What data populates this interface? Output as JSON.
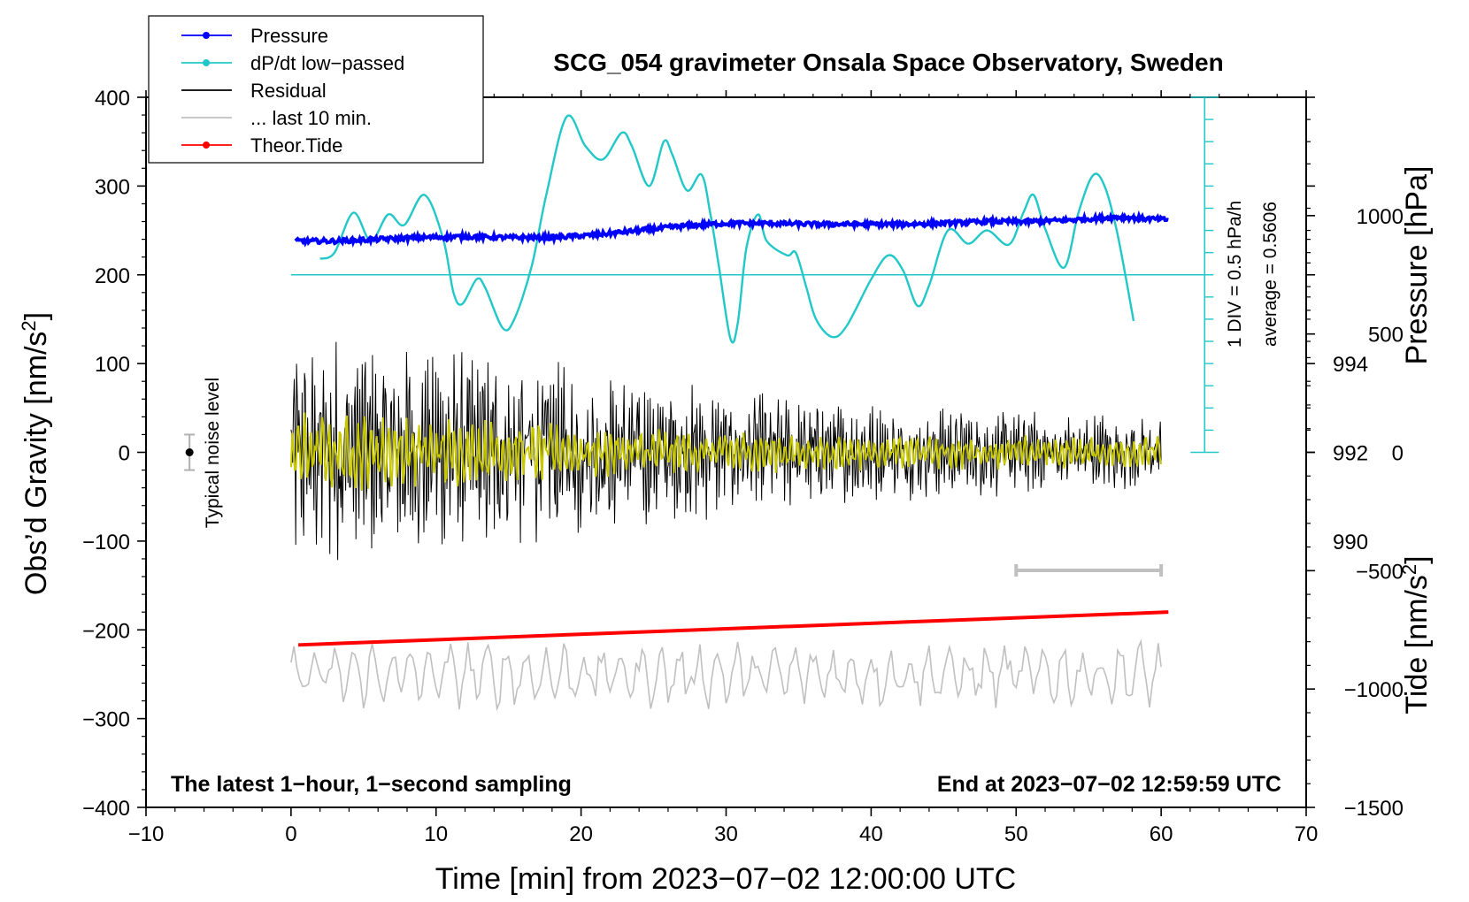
{
  "chart_data": {
    "type": "line",
    "title": "SCG_054 gravimeter Onsala Space Observatory, Sweden",
    "xlabel": "Time [min] from 2023−07−02 12:00:00 UTC",
    "ylabel_prefix": "Obs’d Gravity [nm/s",
    "ylabel_suffix": "]",
    "ylabel_right_top": "Pressure [hPa]",
    "ylabel_right_bottom_prefix": "Tide [nm/s",
    "ylabel_right_bottom_suffix": "]",
    "superscript": "2",
    "xlim": [
      -10,
      70
    ],
    "ylim": [
      -400,
      400
    ],
    "x_ticks": [
      "−10",
      "0",
      "10",
      "20",
      "30",
      "40",
      "50",
      "60",
      "70"
    ],
    "x_tick_values": [
      -10,
      0,
      10,
      20,
      30,
      40,
      50,
      60,
      70
    ],
    "y_ticks": [
      "400",
      "300",
      "200",
      "100",
      "0",
      "−100",
      "−200",
      "−300",
      "−400"
    ],
    "y_tick_values": [
      400,
      300,
      200,
      100,
      0,
      -100,
      -200,
      -300,
      -400
    ],
    "pressure_ticks": [
      "994",
      "992",
      "990"
    ],
    "pressure_tick_values": [
      994,
      992,
      990
    ],
    "pressure_axis_ylim": [
      984,
      1000
    ],
    "tide_ticks": [
      "1000",
      "500",
      "0",
      "−500",
      "−1000",
      "−1500"
    ],
    "tide_tick_values": [
      1000,
      500,
      0,
      -500,
      -1000,
      -1500
    ],
    "tide_axis_ylim": [
      -1500,
      1500
    ],
    "legend": [
      {
        "label": "Pressure",
        "color": "#0000ff",
        "marker": true
      },
      {
        "label": "dP/dt low−passed",
        "color": "#22c8c8",
        "marker": true
      },
      {
        "label": "Residual",
        "color": "#000000",
        "marker": false
      },
      {
        "label": "... last 10 min.",
        "color": "#c0c0c0",
        "marker": false
      },
      {
        "label": "Theor.Tide",
        "color": "#ff0000",
        "marker": true
      }
    ],
    "annotations": {
      "bottom_left": "The latest 1−hour, 1−second sampling",
      "bottom_right": "End at 2023−07−02 12:59:59 UTC",
      "noise_label": "Typical noise level",
      "div_label": "1 DIV = 0.5 hPa/h",
      "average_label": "average = 0.5606"
    },
    "noise_bar": {
      "x": -7,
      "y": 0,
      "half_range": 20
    },
    "dpdt_scale_bar": {
      "x": 63,
      "divisions": 16,
      "per_div_hpa_h": 0.5
    },
    "dpdt_baseline_y": 200,
    "last10_bar": {
      "x_start": 50,
      "x_end": 60,
      "y": -133
    },
    "series": [
      {
        "name": "Pressure",
        "color": "#0000ff",
        "points": [
          [
            0.3,
            238
          ],
          [
            3,
            238
          ],
          [
            6,
            240
          ],
          [
            9,
            242
          ],
          [
            12,
            243
          ],
          [
            15,
            242
          ],
          [
            18,
            242
          ],
          [
            21,
            245
          ],
          [
            24,
            250
          ],
          [
            27,
            255
          ],
          [
            30,
            258
          ],
          [
            33,
            258
          ],
          [
            36,
            257
          ],
          [
            39,
            257
          ],
          [
            42,
            257
          ],
          [
            45,
            258
          ],
          [
            48,
            260
          ],
          [
            51,
            260
          ],
          [
            54,
            262
          ],
          [
            57,
            265
          ],
          [
            60.5,
            262
          ]
        ]
      },
      {
        "name": "dP/dt low−passed",
        "color": "#22c8c8",
        "points": [
          [
            2,
            218
          ],
          [
            3,
            225
          ],
          [
            4.3,
            270
          ],
          [
            5.5,
            238
          ],
          [
            6.7,
            268
          ],
          [
            7.8,
            256
          ],
          [
            9.2,
            290
          ],
          [
            10.5,
            240
          ],
          [
            11.2,
            180
          ],
          [
            11.8,
            167
          ],
          [
            12.8,
            195
          ],
          [
            13.4,
            185
          ],
          [
            14.6,
            140
          ],
          [
            15.4,
            150
          ],
          [
            16.6,
            210
          ],
          [
            17.6,
            290
          ],
          [
            19,
            378
          ],
          [
            20.3,
            345
          ],
          [
            21.5,
            330
          ],
          [
            22.8,
            360
          ],
          [
            23.5,
            345
          ],
          [
            24.7,
            300
          ],
          [
            25.7,
            350
          ],
          [
            26.3,
            335
          ],
          [
            27.3,
            295
          ],
          [
            28.3,
            313
          ],
          [
            28.9,
            270
          ],
          [
            29.5,
            210
          ],
          [
            30.3,
            128
          ],
          [
            30.8,
            145
          ],
          [
            31.4,
            230
          ],
          [
            32.2,
            268
          ],
          [
            32.8,
            238
          ],
          [
            34.2,
            222
          ],
          [
            34.8,
            225
          ],
          [
            35.5,
            188
          ],
          [
            36.2,
            150
          ],
          [
            37.3,
            130
          ],
          [
            38.3,
            142
          ],
          [
            40,
            195
          ],
          [
            41.2,
            222
          ],
          [
            42.2,
            205
          ],
          [
            43.2,
            165
          ],
          [
            44,
            188
          ],
          [
            45.3,
            250
          ],
          [
            46.7,
            235
          ],
          [
            48,
            250
          ],
          [
            49.5,
            234
          ],
          [
            50.5,
            270
          ],
          [
            51.2,
            290
          ],
          [
            52,
            252
          ],
          [
            53.3,
            208
          ],
          [
            54.3,
            270
          ],
          [
            55.3,
            312
          ],
          [
            56.1,
            300
          ],
          [
            57,
            245
          ],
          [
            58.1,
            148
          ]
        ]
      },
      {
        "name": "Theor.Tide",
        "color": "#ff0000",
        "points": [
          [
            0.5,
            -217
          ],
          [
            60.5,
            -180
          ]
        ]
      }
    ],
    "residual": {
      "color": "#000000",
      "x_start": 0,
      "x_end": 60,
      "amplitude_envelope": [
        [
          0,
          110
        ],
        [
          10,
          100
        ],
        [
          20,
          80
        ],
        [
          30,
          60
        ],
        [
          40,
          45
        ],
        [
          50,
          40
        ],
        [
          60,
          35
        ]
      ]
    },
    "lowpassed_residual": {
      "color": "#c8c800",
      "x_start": 0,
      "x_end": 60,
      "amplitude_envelope": [
        [
          0,
          45
        ],
        [
          10,
          40
        ],
        [
          20,
          30
        ],
        [
          30,
          25
        ],
        [
          40,
          20
        ],
        [
          60,
          18
        ]
      ]
    },
    "last10": {
      "color": "#c0c0c0",
      "x_start": 0,
      "x_end": 60,
      "center_y": -250,
      "amplitude": 35
    }
  }
}
